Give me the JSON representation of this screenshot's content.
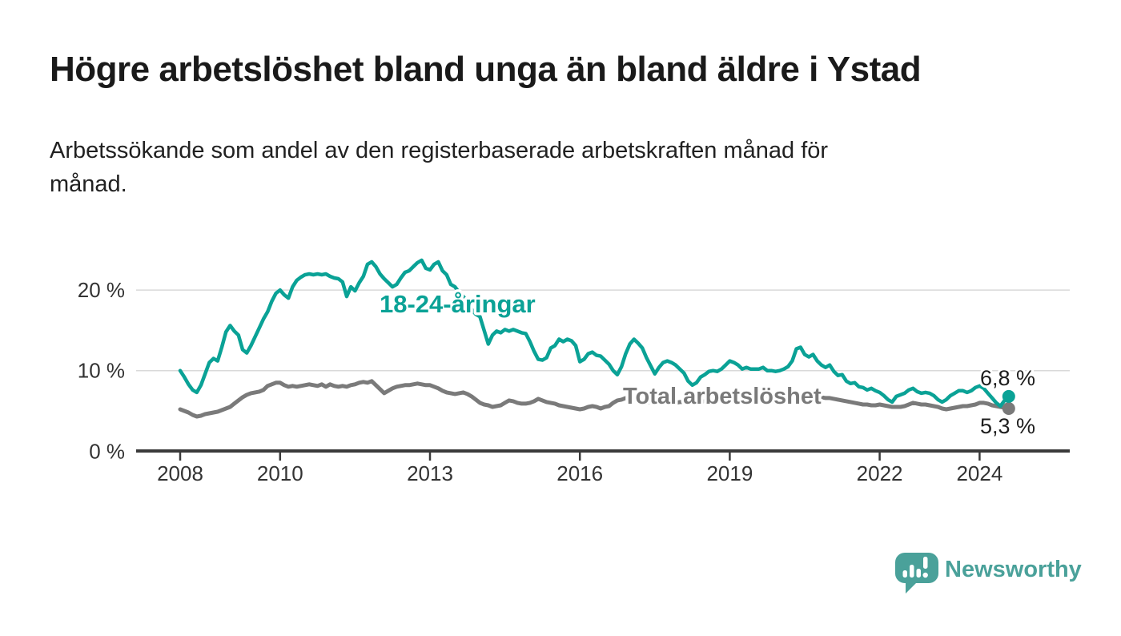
{
  "title": "Högre arbetslöshet bland unga än bland äldre i Ystad",
  "subtitle_lines": [
    "Arbetssökande som andel av den registerbaserade arbetskraften månad för",
    "månad."
  ],
  "footer": {
    "brand": "Newsworthy"
  },
  "colors": {
    "youth": "#0aa296",
    "total": "#7a7a7a",
    "grid": "#d9d9d9",
    "axis": "#3a3a3a",
    "tick_text": "#333333",
    "end_label_text": "#1d1d1d",
    "logo": "#4aa19a"
  },
  "chart_data": {
    "type": "line",
    "unit": "%",
    "interval": "monthly",
    "x_start": "2008-01",
    "x_end": "2024-08",
    "ylim": [
      0,
      25
    ],
    "grid": "horizontal",
    "yticks": [
      {
        "value": 0,
        "label": "0 %"
      },
      {
        "value": 10,
        "label": "10 %"
      },
      {
        "value": 20,
        "label": "20 %"
      }
    ],
    "xticks": [
      {
        "year": 2008,
        "label": "2008"
      },
      {
        "year": 2010,
        "label": "2010"
      },
      {
        "year": 2013,
        "label": "2013"
      },
      {
        "year": 2016,
        "label": "2016"
      },
      {
        "year": 2019,
        "label": "2019"
      },
      {
        "year": 2022,
        "label": "2022"
      },
      {
        "year": 2024,
        "label": "2024"
      }
    ],
    "series": [
      {
        "name": "18-24-åringar",
        "end_label": "6,8 %",
        "end_value": 6.8,
        "color": "#0aa296",
        "values": [
          10.0,
          9.2,
          8.3,
          7.6,
          7.3,
          8.2,
          9.6,
          11.0,
          11.5,
          11.2,
          12.9,
          14.8,
          15.6,
          14.9,
          14.4,
          12.6,
          12.2,
          13.1,
          14.2,
          15.3,
          16.4,
          17.3,
          18.6,
          19.6,
          20.0,
          19.4,
          19.0,
          20.4,
          21.2,
          21.6,
          21.9,
          22.0,
          21.9,
          22.0,
          21.9,
          22.0,
          21.7,
          21.5,
          21.4,
          21.0,
          19.2,
          20.4,
          19.9,
          20.9,
          21.7,
          23.2,
          23.5,
          22.9,
          22.0,
          21.4,
          20.9,
          20.4,
          20.7,
          21.5,
          22.2,
          22.4,
          22.9,
          23.4,
          23.7,
          22.7,
          22.5,
          23.2,
          23.5,
          22.4,
          21.9,
          20.7,
          20.4,
          19.7,
          19.2,
          18.5,
          17.6,
          17.0,
          16.7,
          15.0,
          13.3,
          14.4,
          14.9,
          14.7,
          15.1,
          14.9,
          15.1,
          14.9,
          14.7,
          14.6,
          13.6,
          12.4,
          11.4,
          11.3,
          11.6,
          12.8,
          13.1,
          13.9,
          13.6,
          13.9,
          13.7,
          13.1,
          11.1,
          11.4,
          12.1,
          12.3,
          11.9,
          11.8,
          11.3,
          10.8,
          10.0,
          9.5,
          10.5,
          12.1,
          13.3,
          13.9,
          13.4,
          12.8,
          11.6,
          10.6,
          9.6,
          10.4,
          11.0,
          11.2,
          11.0,
          10.7,
          10.2,
          9.7,
          8.7,
          8.2,
          8.5,
          9.2,
          9.5,
          9.9,
          10.0,
          9.9,
          10.2,
          10.7,
          11.2,
          11.0,
          10.7,
          10.2,
          10.4,
          10.2,
          10.2,
          10.2,
          10.4,
          10.0,
          10.0,
          9.9,
          10.0,
          10.2,
          10.5,
          11.2,
          12.7,
          12.9,
          12.0,
          11.7,
          12.0,
          11.2,
          10.7,
          10.4,
          10.7,
          9.9,
          9.4,
          9.5,
          8.7,
          8.4,
          8.5,
          8.0,
          7.9,
          7.6,
          7.8,
          7.5,
          7.3,
          6.9,
          6.4,
          6.1,
          6.8,
          7.0,
          7.2,
          7.6,
          7.8,
          7.4,
          7.2,
          7.3,
          7.2,
          6.9,
          6.4,
          6.1,
          6.4,
          6.9,
          7.2,
          7.5,
          7.5,
          7.3,
          7.5,
          7.9,
          8.1,
          7.8,
          7.2,
          6.6,
          6.0,
          5.6,
          6.3,
          6.8
        ]
      },
      {
        "name": "Total arbetslöshet",
        "end_label": "5,3 %",
        "end_value": 5.3,
        "color": "#7a7a7a",
        "values": [
          5.2,
          5.0,
          4.8,
          4.5,
          4.3,
          4.4,
          4.6,
          4.7,
          4.8,
          4.9,
          5.1,
          5.3,
          5.5,
          5.9,
          6.3,
          6.7,
          7.0,
          7.2,
          7.3,
          7.4,
          7.6,
          8.1,
          8.3,
          8.5,
          8.5,
          8.2,
          8.0,
          8.1,
          8.0,
          8.1,
          8.2,
          8.3,
          8.2,
          8.1,
          8.3,
          8.0,
          8.3,
          8.1,
          8.0,
          8.1,
          8.0,
          8.2,
          8.3,
          8.5,
          8.6,
          8.5,
          8.7,
          8.2,
          7.7,
          7.2,
          7.5,
          7.8,
          8.0,
          8.1,
          8.2,
          8.2,
          8.3,
          8.4,
          8.3,
          8.2,
          8.2,
          8.0,
          7.8,
          7.5,
          7.3,
          7.2,
          7.1,
          7.2,
          7.3,
          7.1,
          6.8,
          6.4,
          6.0,
          5.8,
          5.7,
          5.5,
          5.6,
          5.7,
          6.0,
          6.3,
          6.2,
          6.0,
          5.9,
          5.9,
          6.0,
          6.2,
          6.5,
          6.3,
          6.1,
          6.0,
          5.9,
          5.7,
          5.6,
          5.5,
          5.4,
          5.3,
          5.2,
          5.3,
          5.5,
          5.6,
          5.5,
          5.3,
          5.5,
          5.6,
          6.0,
          6.3,
          6.4,
          6.6,
          6.5,
          6.4,
          6.2,
          6.0,
          6.0,
          6.1,
          6.2,
          6.1,
          6.0,
          6.1,
          6.0,
          6.0,
          6.1,
          6.1,
          6.0,
          6.0,
          6.1,
          6.1,
          6.2,
          6.2,
          6.2,
          6.3,
          6.3,
          6.3,
          6.3,
          6.4,
          6.4,
          6.4,
          6.4,
          6.5,
          6.5,
          6.5,
          6.5,
          6.6,
          6.6,
          6.6,
          6.6,
          6.6,
          6.7,
          6.8,
          6.9,
          6.9,
          6.9,
          6.8,
          6.8,
          6.7,
          6.7,
          6.6,
          6.6,
          6.5,
          6.4,
          6.3,
          6.2,
          6.1,
          6.0,
          5.9,
          5.8,
          5.8,
          5.7,
          5.7,
          5.8,
          5.7,
          5.6,
          5.5,
          5.5,
          5.5,
          5.6,
          5.8,
          6.0,
          5.9,
          5.8,
          5.8,
          5.7,
          5.6,
          5.5,
          5.3,
          5.2,
          5.3,
          5.4,
          5.5,
          5.6,
          5.6,
          5.7,
          5.8,
          6.0,
          6.0,
          5.9,
          5.7,
          5.6,
          5.5,
          5.4,
          5.3
        ]
      }
    ]
  }
}
